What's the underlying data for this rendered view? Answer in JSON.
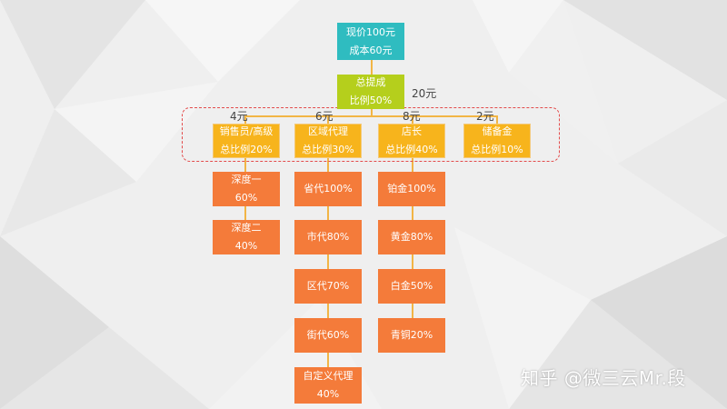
{
  "root": {
    "line1": "现价100元",
    "line2": "成本60元"
  },
  "commission": {
    "line1": "总提成",
    "line2": "比例50%",
    "amount": "20元"
  },
  "tier2": [
    {
      "amount": "4元",
      "line1": "销售员/高级",
      "line2": "总比例20%"
    },
    {
      "amount": "6元",
      "line1": "区域代理",
      "line2": "总比例30%"
    },
    {
      "amount": "8元",
      "line1": "店长",
      "line2": "总比例40%"
    },
    {
      "amount": "2元",
      "line1": "储备金",
      "line2": "总比例10%"
    }
  ],
  "sales_children": [
    {
      "line1": "深度一",
      "line2": "60%"
    },
    {
      "line1": "深度二",
      "line2": "40%"
    }
  ],
  "agent_children": [
    {
      "line1": "省代100%"
    },
    {
      "line1": "市代80%"
    },
    {
      "line1": "区代70%"
    },
    {
      "line1": "街代60%"
    },
    {
      "line1": "自定义代理",
      "line2": "40%"
    }
  ],
  "manager_children": [
    {
      "line1": "铂金100%"
    },
    {
      "line1": "黄金80%"
    },
    {
      "line1": "白金50%"
    },
    {
      "line1": "青铜20%"
    }
  ],
  "watermark": "知乎 @微三云Mr.段"
}
